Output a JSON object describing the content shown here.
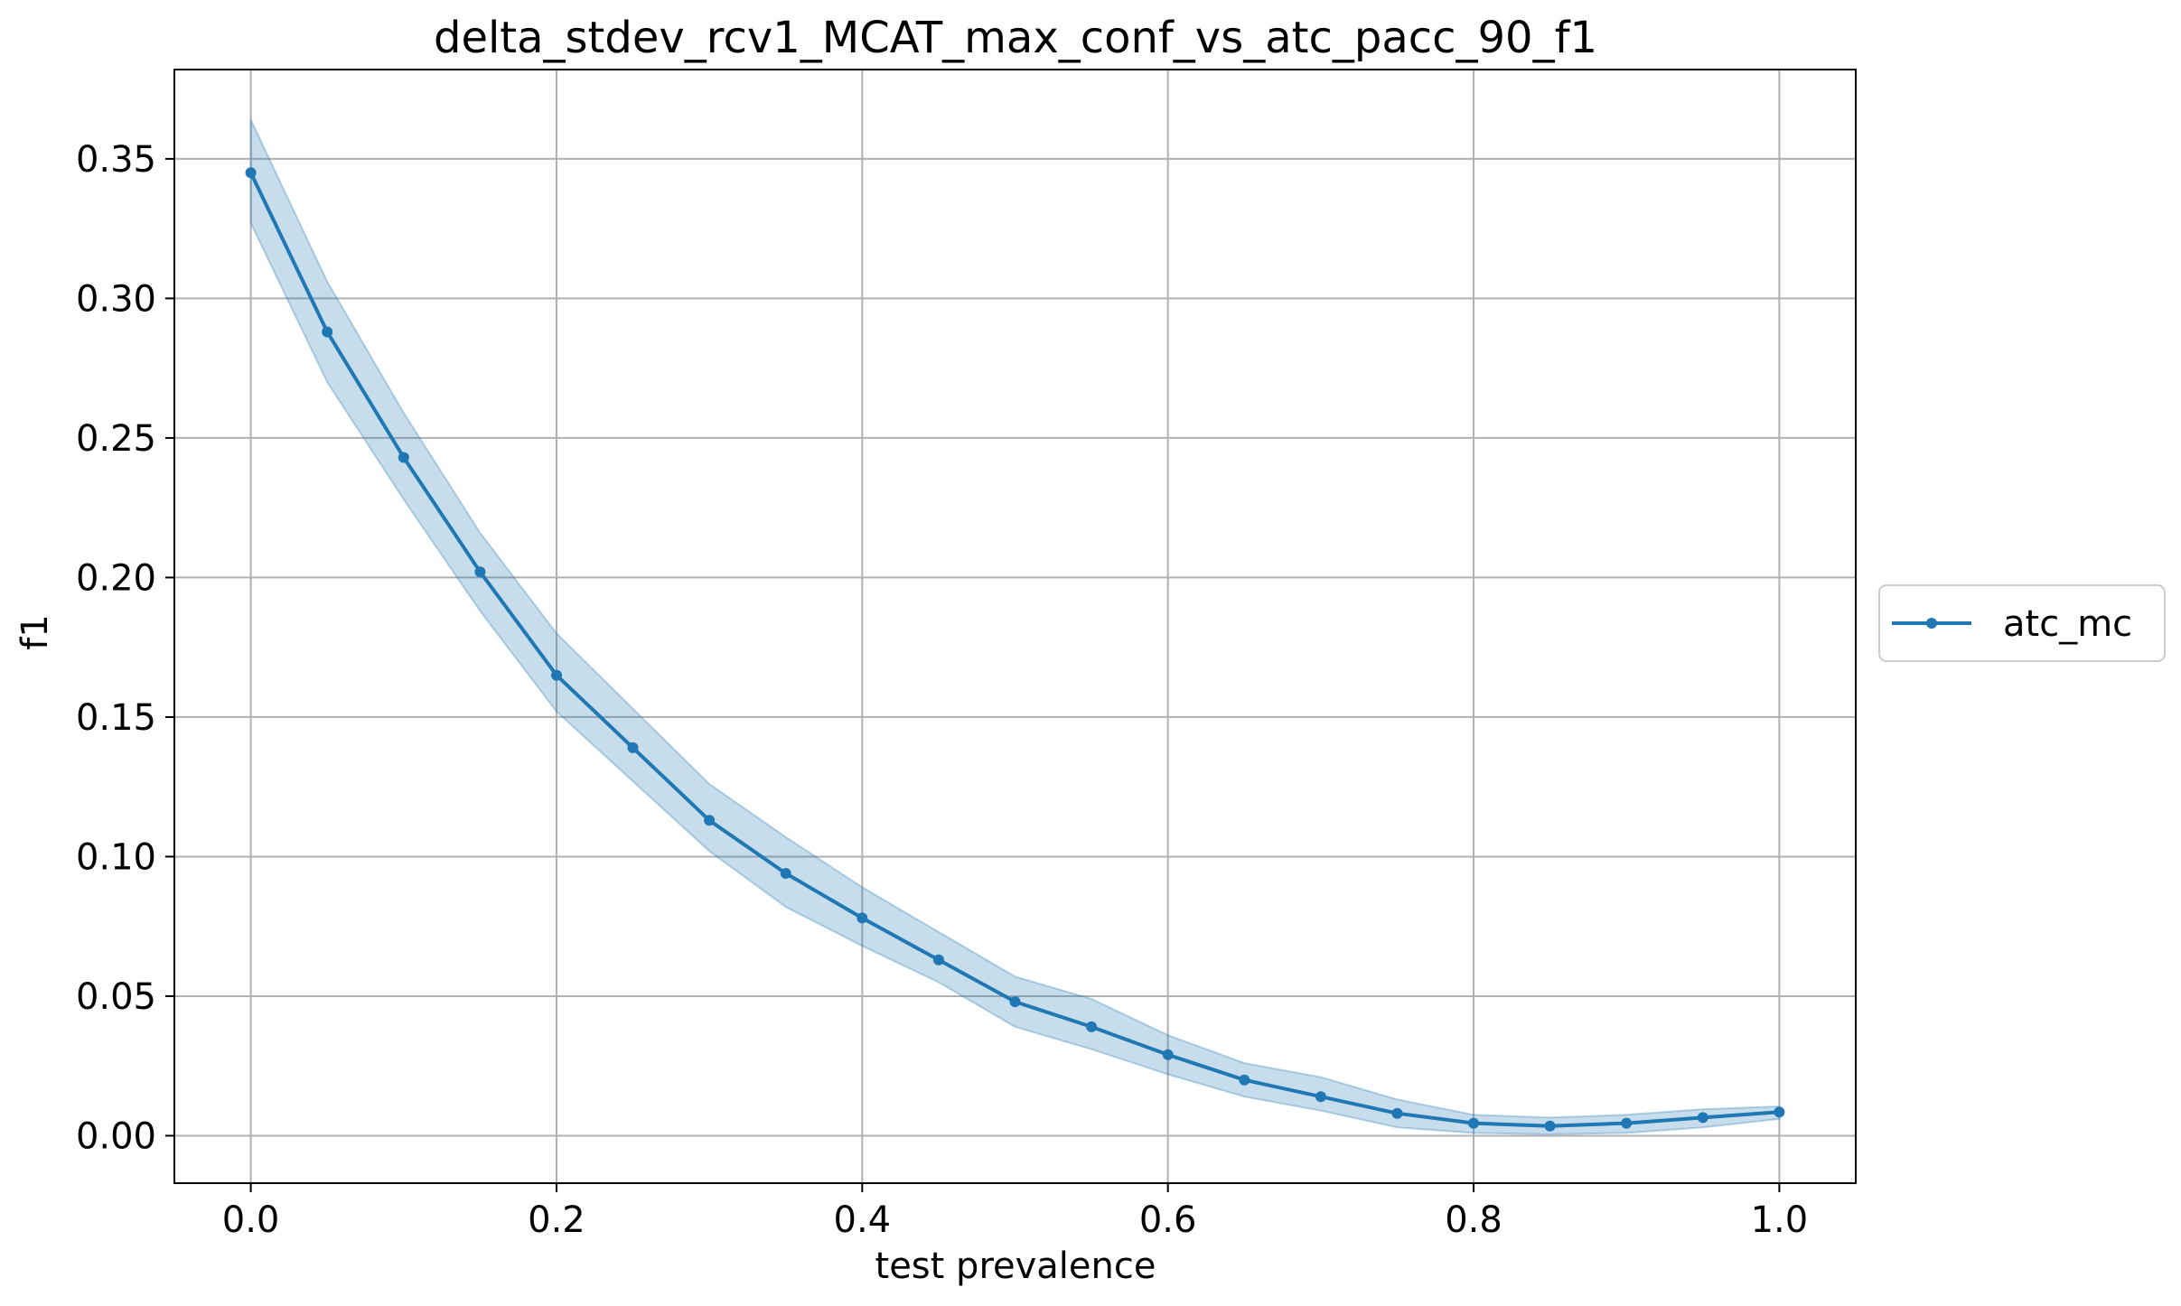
{
  "chart_data": {
    "type": "line",
    "title": "delta_stdev_rcv1_MCAT_max_conf_vs_atc_pacc_90_f1",
    "xlabel": "test prevalence",
    "ylabel": "f1",
    "xlim": [
      -0.05,
      1.05
    ],
    "ylim": [
      -0.017,
      0.382
    ],
    "x_ticks": [
      0.0,
      0.2,
      0.4,
      0.6,
      0.8,
      1.0
    ],
    "x_tick_labels": [
      "0.0",
      "0.2",
      "0.4",
      "0.6",
      "0.8",
      "1.0"
    ],
    "y_ticks": [
      0.0,
      0.05,
      0.1,
      0.15,
      0.2,
      0.25,
      0.3,
      0.35
    ],
    "y_tick_labels": [
      "0.00",
      "0.05",
      "0.10",
      "0.15",
      "0.20",
      "0.25",
      "0.30",
      "0.35"
    ],
    "grid": true,
    "legend_position": "center-right outside",
    "x": [
      0.0,
      0.05,
      0.1,
      0.15,
      0.2,
      0.25,
      0.3,
      0.35,
      0.4,
      0.45,
      0.5,
      0.55,
      0.6,
      0.65,
      0.7,
      0.75,
      0.8,
      0.85,
      0.9,
      0.95,
      1.0
    ],
    "series": [
      {
        "name": "atc_mc",
        "color": "#1f77b4",
        "values": [
          0.345,
          0.288,
          0.243,
          0.202,
          0.165,
          0.139,
          0.113,
          0.094,
          0.078,
          0.063,
          0.048,
          0.039,
          0.029,
          0.02,
          0.014,
          0.008,
          0.0045,
          0.0035,
          0.0045,
          0.0065,
          0.0085
        ],
        "band_lower": [
          0.327,
          0.27,
          0.228,
          0.188,
          0.152,
          0.127,
          0.102,
          0.082,
          0.068,
          0.055,
          0.039,
          0.031,
          0.022,
          0.014,
          0.009,
          0.003,
          0.001,
          0.0005,
          0.001,
          0.003,
          0.006
        ],
        "band_upper": [
          0.364,
          0.306,
          0.259,
          0.216,
          0.18,
          0.153,
          0.126,
          0.107,
          0.089,
          0.073,
          0.057,
          0.049,
          0.036,
          0.026,
          0.021,
          0.013,
          0.0075,
          0.0065,
          0.0075,
          0.0095,
          0.0105
        ],
        "band_color": "#1f77b4",
        "band_opacity": 0.25
      }
    ]
  }
}
